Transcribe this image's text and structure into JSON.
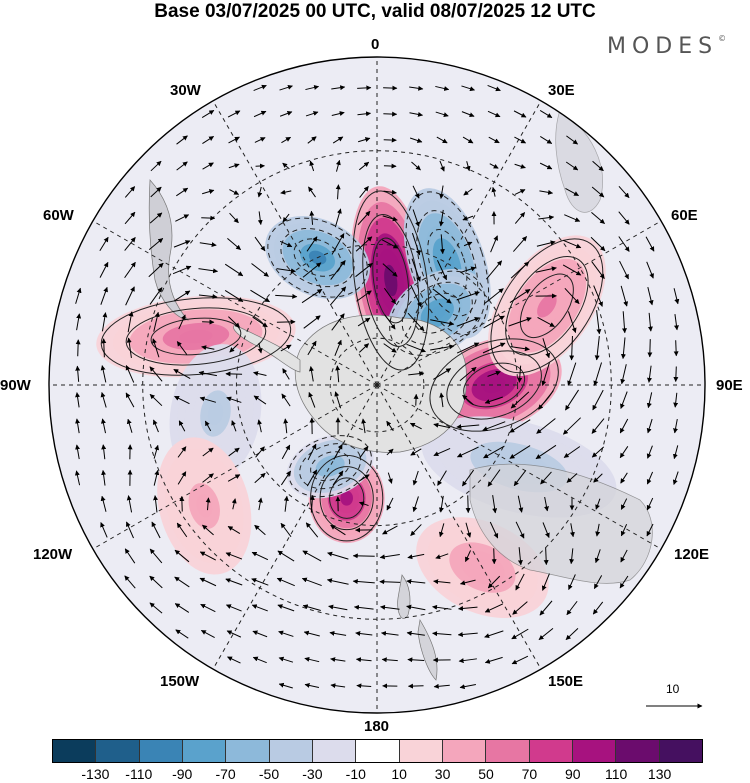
{
  "title": "Base 03/07/2025 00 UTC, valid 08/07/2025 12 UTC",
  "brand": {
    "name": "MODES",
    "mark": "©"
  },
  "longitude_labels": {
    "lon_0": "0",
    "lon_30e": "30E",
    "lon_60e": "60E",
    "lon_90e": "90E",
    "lon_120e": "120E",
    "lon_150e": "150E",
    "lon_180": "180",
    "lon_150w": "150W",
    "lon_120w": "120W",
    "lon_90w": "90W",
    "lon_60w": "60W",
    "lon_30w": "30W"
  },
  "reference_vector": {
    "label": "10"
  },
  "colorbar": {
    "colors": [
      "#0b3c5c",
      "#1f5f8b",
      "#3a84b5",
      "#5aa2cc",
      "#8db9da",
      "#b9cbe3",
      "#dcdcec",
      "#ffffff",
      "#f9d3d8",
      "#f4a6bc",
      "#e776a3",
      "#d13a8d",
      "#a7127f",
      "#6b0c6d",
      "#451060"
    ],
    "ticks": [
      "-130",
      "-110",
      "-90",
      "-70",
      "-50",
      "-30",
      "-10",
      "10",
      "30",
      "50",
      "70",
      "90",
      "110",
      "130"
    ]
  },
  "map": {
    "anomaly_centers": [
      {
        "sign": "positive",
        "value": 125,
        "region": "0-15E, 60-75S"
      },
      {
        "sign": "negative",
        "value": -85,
        "region": "30E, 55-65S"
      },
      {
        "sign": "negative",
        "value": -90,
        "region": "25W, 60S"
      },
      {
        "sign": "negative",
        "value": -80,
        "region": "40E, 70S"
      },
      {
        "sign": "positive",
        "value": 110,
        "region": "90E, 65S"
      },
      {
        "sign": "positive",
        "value": 55,
        "region": "65E, 50S"
      },
      {
        "sign": "positive",
        "value": 95,
        "region": "165W, 65S"
      },
      {
        "sign": "negative",
        "value": -60,
        "region": "150W, 70S"
      },
      {
        "sign": "positive",
        "value": 60,
        "region": "75W, 50S"
      },
      {
        "sign": "negative",
        "value": -35,
        "region": "100W, 55S"
      },
      {
        "sign": "positive",
        "value": 35,
        "region": "125W, 45S"
      },
      {
        "sign": "positive",
        "value": 45,
        "region": "150E, 45S"
      },
      {
        "sign": "negative",
        "value": -45,
        "region": "120E, 55S"
      }
    ]
  }
}
